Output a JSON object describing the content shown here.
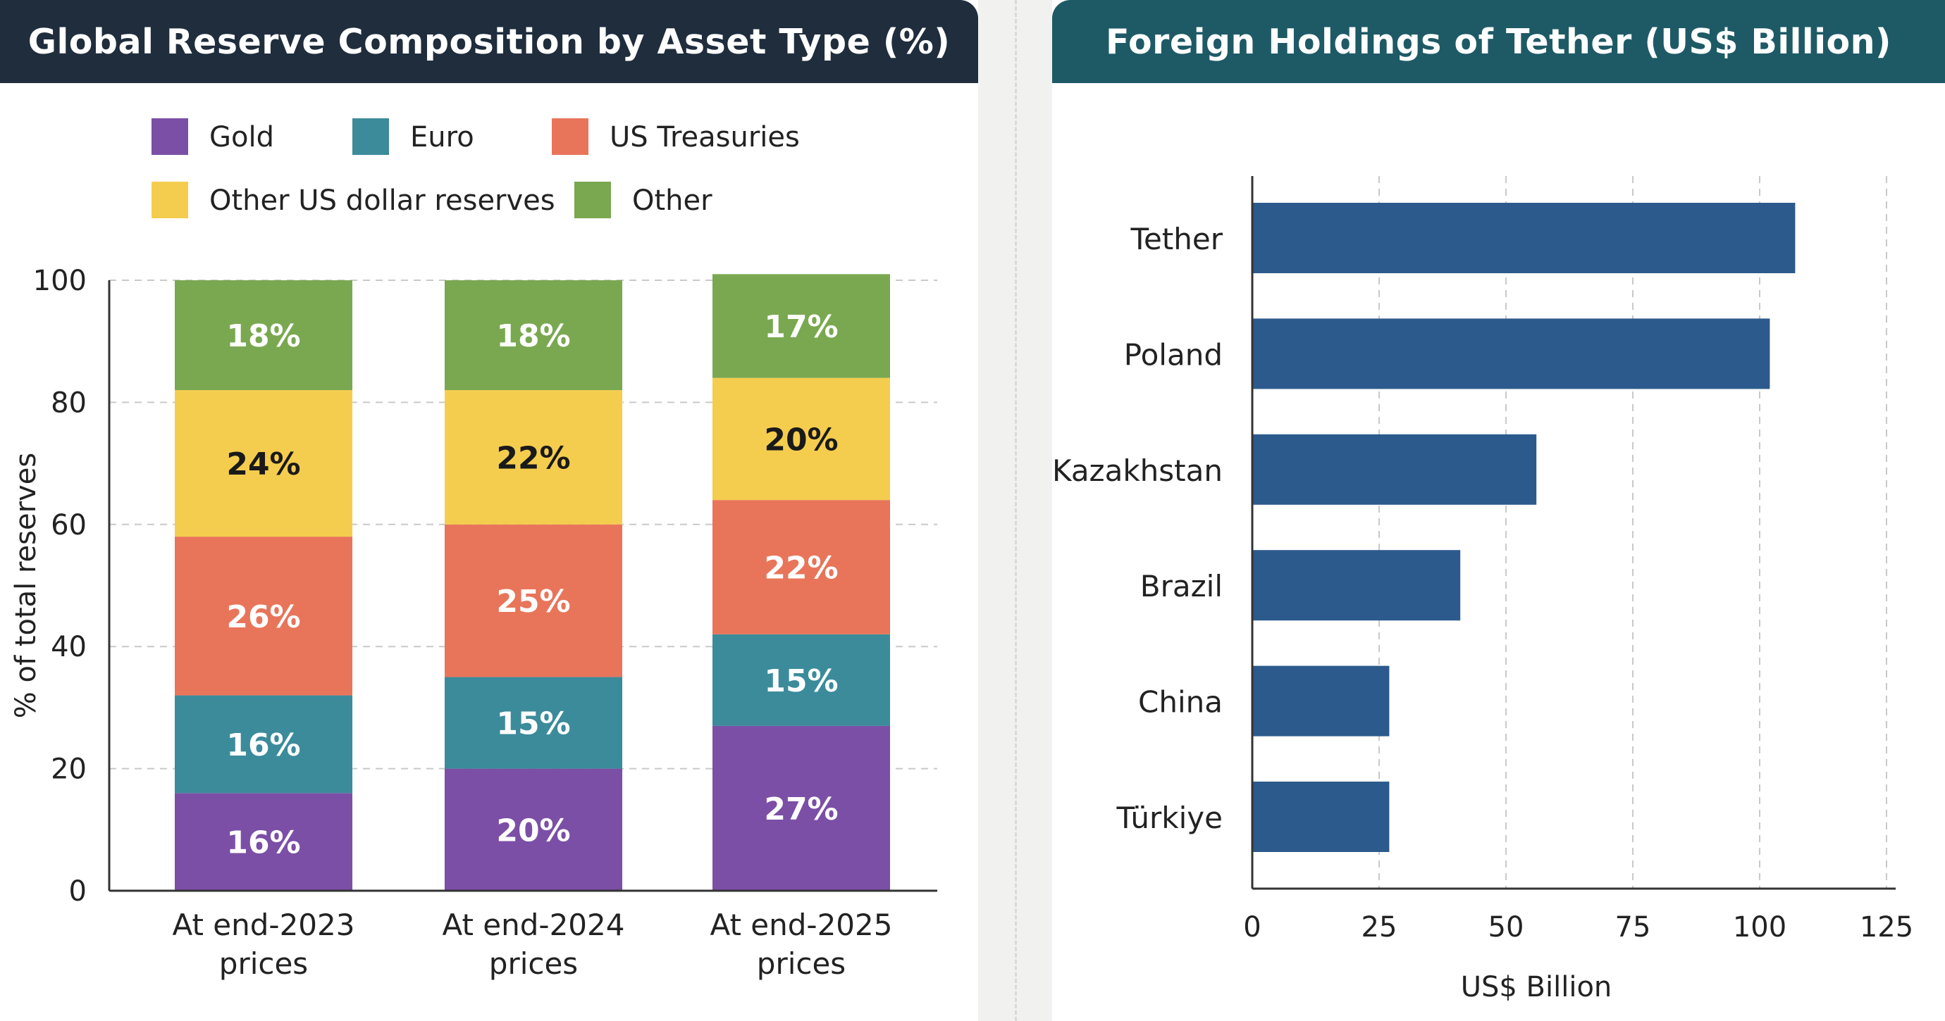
{
  "left_panel": {
    "title": "Global Reserve Composition by Asset Type (%)"
  },
  "right_panel": {
    "title": "Foreign Holdings of Tether (US$ Billion)"
  },
  "chart_data": [
    {
      "type": "bar",
      "stacked": true,
      "title": "Global Reserve Composition by Asset Type (%)",
      "ylabel": "% of total reserves",
      "xlabel": "",
      "ylim": [
        0,
        100
      ],
      "yticks": [
        0,
        20,
        40,
        60,
        80,
        100
      ],
      "grid": true,
      "legend_position": "top",
      "categories": [
        "At end-2023 prices",
        "At end-2024 prices",
        "At end-2025 prices"
      ],
      "category_lines": [
        [
          "At end-2023",
          "prices"
        ],
        [
          "At end-2024",
          "prices"
        ],
        [
          "At end-2025",
          "prices"
        ]
      ],
      "series": [
        {
          "name": "Gold",
          "color": "#7b4fa6",
          "values": [
            16,
            20,
            27
          ],
          "labels": [
            "16%",
            "20%",
            "27%"
          ],
          "label_color": "#ffffff"
        },
        {
          "name": "Euro",
          "color": "#3b8b9b",
          "values": [
            16,
            15,
            15
          ],
          "labels": [
            "16%",
            "15%",
            "15%"
          ],
          "label_color": "#ffffff"
        },
        {
          "name": "US Treasuries",
          "color": "#e8755a",
          "values": [
            26,
            25,
            22
          ],
          "labels": [
            "26%",
            "25%",
            "22%"
          ],
          "label_color": "#ffffff"
        },
        {
          "name": "Other US dollar reserves",
          "color": "#f5cd4e",
          "values": [
            24,
            22,
            20
          ],
          "labels": [
            "24%",
            "22%",
            "20%"
          ],
          "label_color": "#1a1a1a"
        },
        {
          "name": "Other",
          "color": "#7aa850",
          "values": [
            18,
            18,
            17
          ],
          "labels": [
            "18%",
            "18%",
            "17%"
          ],
          "label_color": "#ffffff"
        }
      ]
    },
    {
      "type": "bar",
      "orientation": "horizontal",
      "title": "Foreign Holdings of Tether (US$ Billion)",
      "xlabel": "US$ Billion",
      "ylabel": "",
      "xlim": [
        0,
        125
      ],
      "xticks": [
        0,
        25,
        50,
        75,
        100,
        125
      ],
      "grid": true,
      "bar_color": "#2c5a8c",
      "categories": [
        "Tether",
        "Poland",
        "Kazakhstan",
        "Brazil",
        "China",
        "Türkiye"
      ],
      "values": [
        107,
        102,
        56,
        41,
        27,
        27
      ]
    }
  ]
}
